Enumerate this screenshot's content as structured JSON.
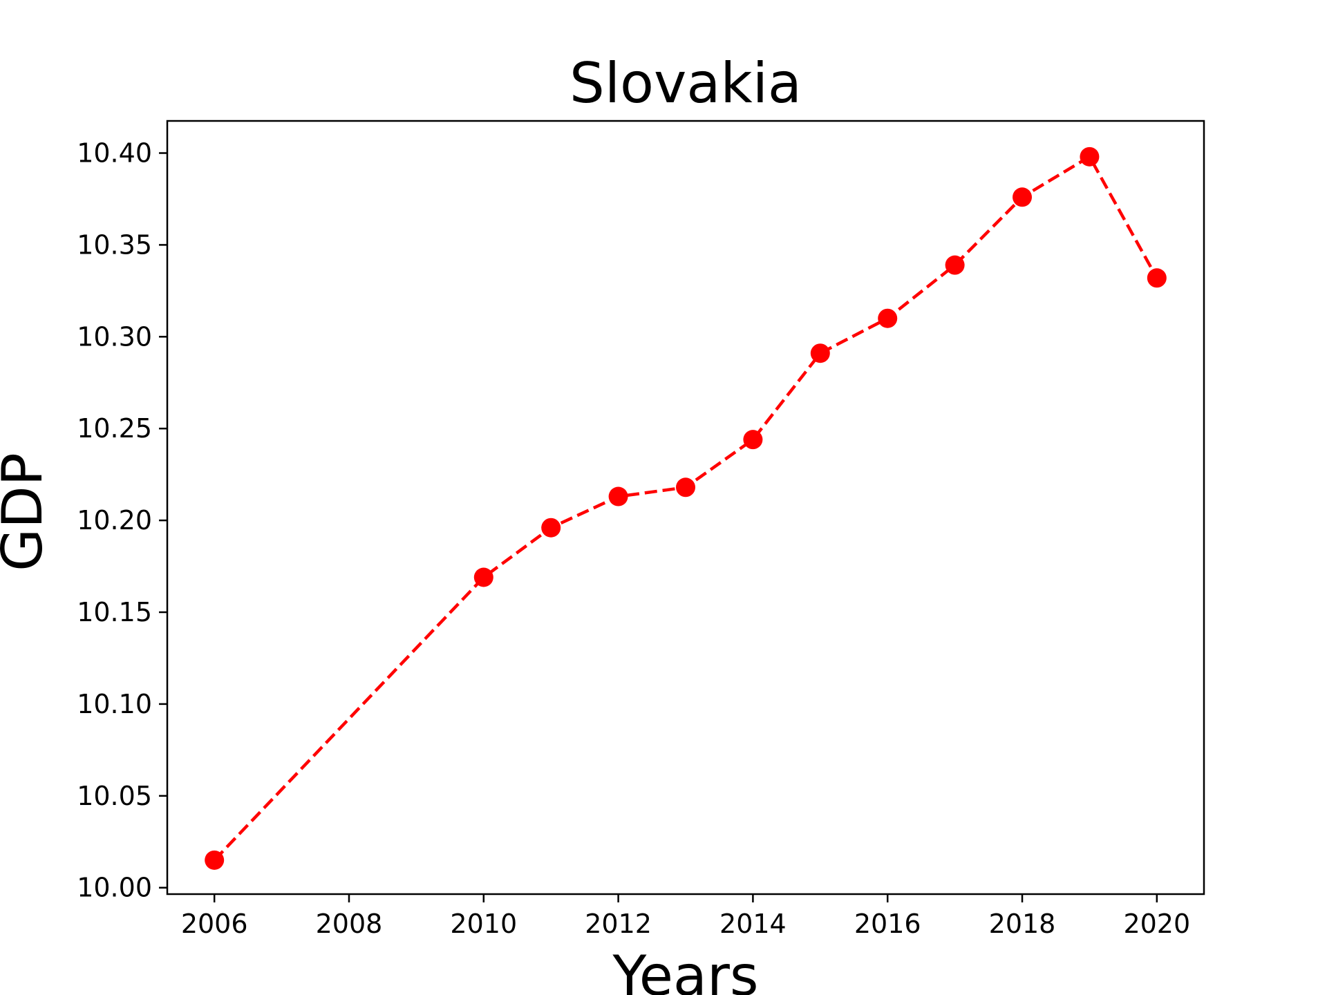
{
  "chart_data": {
    "type": "line",
    "title": "Slovakia",
    "xlabel": "Years",
    "ylabel": "GDP",
    "xlim": [
      2005.3,
      2020.7
    ],
    "ylim": [
      9.9965,
      10.4175
    ],
    "x_ticks": [
      2006,
      2008,
      2010,
      2012,
      2014,
      2016,
      2018,
      2020
    ],
    "y_ticks": [
      10.0,
      10.05,
      10.1,
      10.15,
      10.2,
      10.25,
      10.3,
      10.35,
      10.4
    ],
    "y_tick_labels": [
      "10.00",
      "10.05",
      "10.10",
      "10.15",
      "10.20",
      "10.25",
      "10.30",
      "10.35",
      "10.40"
    ],
    "grid": false,
    "series": [
      {
        "color": "#ff0000",
        "line_style": "dashed",
        "marker": "circle",
        "x": [
          2006,
          2010,
          2011,
          2012,
          2013,
          2014,
          2015,
          2016,
          2017,
          2018,
          2019,
          2020
        ],
        "y": [
          10.015,
          10.169,
          10.196,
          10.213,
          10.218,
          10.244,
          10.291,
          10.31,
          10.339,
          10.376,
          10.398,
          10.332
        ]
      }
    ]
  }
}
